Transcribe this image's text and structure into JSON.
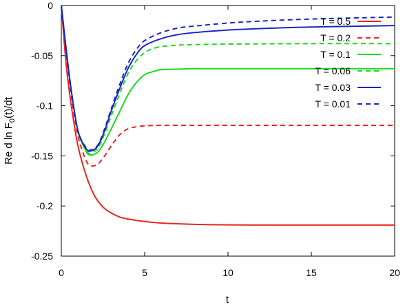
{
  "chart_data": {
    "type": "line",
    "title": "",
    "xlabel": "t",
    "ylabel_main": "Re d ln F",
    "ylabel_sub": "0",
    "ylabel_tail": "(t)/dt",
    "xlim": [
      0,
      20
    ],
    "ylim": [
      -0.25,
      0
    ],
    "xticks": [
      0,
      5,
      10,
      15,
      20
    ],
    "xtick_labels": [
      "0",
      "5",
      "10",
      "15",
      "20"
    ],
    "yticks": [
      0,
      -0.05,
      -0.1,
      -0.15,
      -0.2,
      -0.25
    ],
    "ytick_labels": [
      "0",
      "-0.05",
      "-0.1",
      "-0.15",
      "-0.2",
      "-0.25"
    ],
    "grid": false,
    "legend_position": "top-right",
    "series": [
      {
        "name": "T = 0.5",
        "color": "#e8261f",
        "dash": "solid",
        "x": [
          0,
          0.3,
          0.6,
          1.0,
          1.5,
          2.0,
          2.5,
          3.0,
          3.5,
          4.0,
          5.0,
          6.0,
          8.0,
          10.0,
          12.0,
          15.0,
          20.0
        ],
        "y": [
          0,
          -0.06,
          -0.1,
          -0.14,
          -0.17,
          -0.19,
          -0.201,
          -0.207,
          -0.211,
          -0.213,
          -0.2155,
          -0.217,
          -0.2183,
          -0.2188,
          -0.219,
          -0.219,
          -0.219
        ]
      },
      {
        "name": "T = 0.2",
        "color": "#e8261f",
        "dash": "dashed",
        "x": [
          0,
          0.3,
          0.6,
          1.0,
          1.5,
          1.8,
          2.2,
          2.6,
          3.0,
          3.5,
          4.0,
          4.5,
          5.0,
          6.0,
          8.0,
          10.0,
          15.0,
          20.0
        ],
        "y": [
          0,
          -0.05,
          -0.09,
          -0.13,
          -0.155,
          -0.16,
          -0.158,
          -0.15,
          -0.14,
          -0.129,
          -0.123,
          -0.121,
          -0.12,
          -0.1195,
          -0.1195,
          -0.1195,
          -0.1195,
          -0.1195
        ]
      },
      {
        "name": "T = 0.1",
        "color": "#19d91a",
        "dash": "solid",
        "x": [
          0,
          0.3,
          0.6,
          1.0,
          1.5,
          1.8,
          2.2,
          2.6,
          3.0,
          3.5,
          4.0,
          4.5,
          5.0,
          5.5,
          6.0,
          7.0,
          8.0,
          10.0,
          15.0,
          20.0
        ],
        "y": [
          0,
          -0.045,
          -0.085,
          -0.125,
          -0.146,
          -0.149,
          -0.146,
          -0.136,
          -0.123,
          -0.106,
          -0.089,
          -0.077,
          -0.069,
          -0.066,
          -0.064,
          -0.0635,
          -0.063,
          -0.063,
          -0.063,
          -0.063
        ]
      },
      {
        "name": "T = 0.06",
        "color": "#19d91a",
        "dash": "dashed",
        "x": [
          0,
          0.3,
          0.6,
          1.0,
          1.5,
          1.8,
          2.2,
          2.6,
          3.0,
          3.5,
          4.0,
          4.5,
          5.0,
          5.5,
          6.0,
          7.0,
          8.0,
          10.0,
          15.0,
          20.0
        ],
        "y": [
          0,
          -0.045,
          -0.085,
          -0.125,
          -0.145,
          -0.147,
          -0.142,
          -0.128,
          -0.11,
          -0.088,
          -0.068,
          -0.055,
          -0.047,
          -0.043,
          -0.041,
          -0.0395,
          -0.039,
          -0.0385,
          -0.038,
          -0.038
        ]
      },
      {
        "name": "T = 0.03",
        "color": "#1a24c9",
        "dash": "solid",
        "x": [
          0,
          0.3,
          0.6,
          1.0,
          1.5,
          1.8,
          2.2,
          2.6,
          3.0,
          3.5,
          4.0,
          4.5,
          5.0,
          6.0,
          7.0,
          8.0,
          10.0,
          12.0,
          15.0,
          20.0
        ],
        "y": [
          0,
          -0.045,
          -0.085,
          -0.125,
          -0.143,
          -0.145,
          -0.14,
          -0.125,
          -0.105,
          -0.083,
          -0.063,
          -0.049,
          -0.04,
          -0.033,
          -0.029,
          -0.027,
          -0.0245,
          -0.023,
          -0.0215,
          -0.02
        ]
      },
      {
        "name": "T = 0.01",
        "color": "#1a24c9",
        "dash": "dashed",
        "x": [
          0,
          0.3,
          0.6,
          1.0,
          1.5,
          1.8,
          2.2,
          2.6,
          3.0,
          3.5,
          4.0,
          4.5,
          5.0,
          6.0,
          7.0,
          8.0,
          10.0,
          12.0,
          15.0,
          20.0
        ],
        "y": [
          0,
          -0.045,
          -0.085,
          -0.125,
          -0.142,
          -0.144,
          -0.139,
          -0.123,
          -0.103,
          -0.079,
          -0.058,
          -0.044,
          -0.035,
          -0.027,
          -0.0225,
          -0.0205,
          -0.0175,
          -0.0155,
          -0.0135,
          -0.0115
        ]
      }
    ]
  }
}
